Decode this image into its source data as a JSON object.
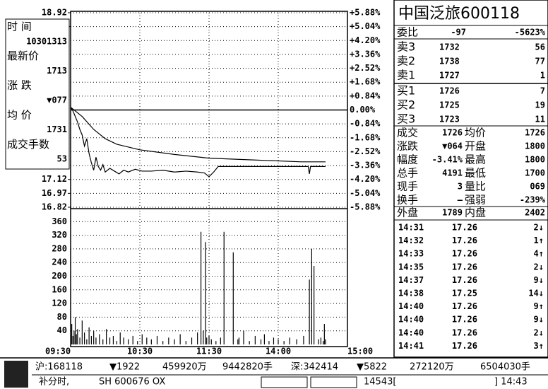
{
  "chart_data": [
    {
      "type": "line",
      "xlim": [
        0,
        240
      ],
      "xticks": [
        {
          "value": 0,
          "label": "09:30"
        },
        {
          "value": 60,
          "label": "10:30"
        },
        {
          "value": 120,
          "label": "11:30"
        },
        {
          "value": 180,
          "label": "14:00"
        },
        {
          "value": 240,
          "label": "15:00"
        }
      ],
      "ylim": [
        16.82,
        18.92
      ],
      "yticks": [
        18.92,
        18.77,
        17.12,
        16.97,
        16.82
      ],
      "y2lim": [
        -5.88,
        5.88
      ],
      "y2ticks": [
        {
          "value": 5.88,
          "label": "+5.88%"
        },
        {
          "value": 5.04,
          "label": "+5.04%"
        },
        {
          "value": 4.2,
          "label": "+4.20%"
        },
        {
          "value": 3.36,
          "label": "+3.36%"
        },
        {
          "value": 2.52,
          "label": "+2.52%"
        },
        {
          "value": 1.68,
          "label": "+1.68%"
        },
        {
          "value": 0.84,
          "label": "+0.84%"
        },
        {
          "value": 0,
          "label": "0.00%"
        },
        {
          "value": -0.84,
          "label": "-0.84%"
        },
        {
          "value": -1.68,
          "label": "-1.68%"
        },
        {
          "value": -2.52,
          "label": "-2.52%"
        },
        {
          "value": -3.36,
          "label": "-3.36%"
        },
        {
          "value": -4.2,
          "label": "-4.20%"
        },
        {
          "value": -5.04,
          "label": "-5.04%"
        },
        {
          "value": -5.88,
          "label": "-5.88%"
        }
      ],
      "grid": true,
      "series": [
        {
          "color": "#000000",
          "x": [
            0,
            2,
            4,
            6,
            8,
            10,
            12,
            14,
            16,
            18,
            20,
            22,
            24,
            26,
            28,
            30,
            34,
            38,
            42,
            46,
            50,
            56,
            62,
            70,
            80,
            90,
            100,
            110,
            116,
            120,
            124,
            128,
            135,
            150,
            170,
            195,
            206,
            207,
            208,
            221
          ],
          "values": [
            17.9,
            17.86,
            17.8,
            17.74,
            17.66,
            17.6,
            17.48,
            17.56,
            17.4,
            17.3,
            17.22,
            17.36,
            17.26,
            17.22,
            17.28,
            17.2,
            17.24,
            17.21,
            17.18,
            17.22,
            17.2,
            17.23,
            17.21,
            17.21,
            17.22,
            17.2,
            17.21,
            17.2,
            17.19,
            17.15,
            17.2,
            17.26,
            17.26,
            17.26,
            17.26,
            17.26,
            17.26,
            17.18,
            17.26,
            17.26
          ]
        },
        {
          "color": "#000000",
          "x": [
            0,
            10,
            20,
            30,
            40,
            60,
            90,
            120,
            160,
            200,
            221
          ],
          "values": [
            17.9,
            17.8,
            17.66,
            17.56,
            17.5,
            17.44,
            17.39,
            17.35,
            17.33,
            17.31,
            17.31
          ]
        }
      ]
    },
    {
      "type": "bar",
      "xlim": [
        0,
        240
      ],
      "ylim": [
        0,
        400
      ],
      "yticks": [
        360,
        320,
        280,
        240,
        200,
        160,
        120,
        80,
        40
      ],
      "color": "#000000",
      "x": [
        1,
        2,
        3,
        4,
        5,
        6,
        8,
        10,
        12,
        14,
        16,
        18,
        20,
        22,
        25,
        28,
        31,
        34,
        37,
        40,
        43,
        46,
        50,
        54,
        58,
        62,
        66,
        70,
        75,
        80,
        85,
        90,
        95,
        100,
        105,
        110,
        113,
        115,
        117,
        118,
        120,
        122,
        126,
        130,
        133,
        141,
        145,
        146,
        150,
        155,
        160,
        165,
        168,
        172,
        176,
        180,
        185,
        190,
        196,
        202,
        207,
        209,
        211,
        215,
        217,
        219,
        220,
        221
      ],
      "values": [
        60,
        25,
        40,
        80,
        30,
        45,
        20,
        70,
        35,
        15,
        50,
        25,
        40,
        20,
        30,
        15,
        45,
        20,
        25,
        10,
        35,
        20,
        15,
        25,
        10,
        30,
        20,
        15,
        25,
        10,
        20,
        15,
        30,
        10,
        20,
        35,
        330,
        40,
        300,
        20,
        25,
        15,
        10,
        20,
        330,
        270,
        15,
        20,
        40,
        10,
        25,
        15,
        30,
        10,
        20,
        15,
        10,
        20,
        15,
        25,
        190,
        280,
        230,
        15,
        20,
        10,
        60,
        15
      ]
    }
  ],
  "info_box": {
    "rows": [
      "时  间",
      "10301313",
      "最新价",
      "1713",
      "涨  跌",
      "▼077",
      "均  价",
      "1731",
      "成交手数",
      "53"
    ]
  },
  "quote": {
    "title": "中国泛旅600118",
    "order_ratio": [
      "委比",
      "-97",
      "-5623%"
    ],
    "sells": [
      [
        "卖3",
        "1732",
        "56"
      ],
      [
        "卖2",
        "1738",
        "77"
      ],
      [
        "卖1",
        "1727",
        "1"
      ]
    ],
    "buys": [
      [
        "买1",
        "1726",
        "7"
      ],
      [
        "买2",
        "1725",
        "19"
      ],
      [
        "买3",
        "1723",
        "11"
      ]
    ],
    "stats": [
      [
        "成交",
        "1726",
        "均价",
        "1726"
      ],
      [
        "涨跌",
        "▼064",
        "开盘",
        "1800"
      ],
      [
        "幅度",
        "-3.41%",
        "最高",
        "1800"
      ],
      [
        "总手",
        "4191",
        "最低",
        "1700"
      ],
      [
        "现手",
        "3",
        "量比",
        "069"
      ],
      [
        "换手",
        "—",
        "强弱",
        "-239%"
      ]
    ],
    "outer_inner": [
      "外盘",
      "1789",
      "内盘",
      "2402"
    ],
    "trades": [
      [
        "14:31",
        "17.26",
        "2↓"
      ],
      [
        "14:32",
        "17.26",
        "1↑"
      ],
      [
        "14:33",
        "17.26",
        "4↑"
      ],
      [
        "14:35",
        "17.26",
        "2↓"
      ],
      [
        "14:37",
        "17.26",
        "9↓"
      ],
      [
        "14:38",
        "17.25",
        "14↓"
      ],
      [
        "14:40",
        "17.26",
        "9↑"
      ],
      [
        "14:40",
        "17.26",
        "9↓"
      ],
      [
        "14:40",
        "17.26",
        "2↓"
      ],
      [
        "14:41",
        "17.26",
        "3↑"
      ]
    ]
  },
  "status": {
    "row1": [
      "沪:168118",
      "▼1922",
      "459920万",
      "9442820手",
      "深:342414",
      "▼5822",
      "272120万",
      "6504030手"
    ],
    "row2": [
      "补分时,",
      "SH 600676 OX",
      "14543[",
      "] 14:43"
    ]
  }
}
